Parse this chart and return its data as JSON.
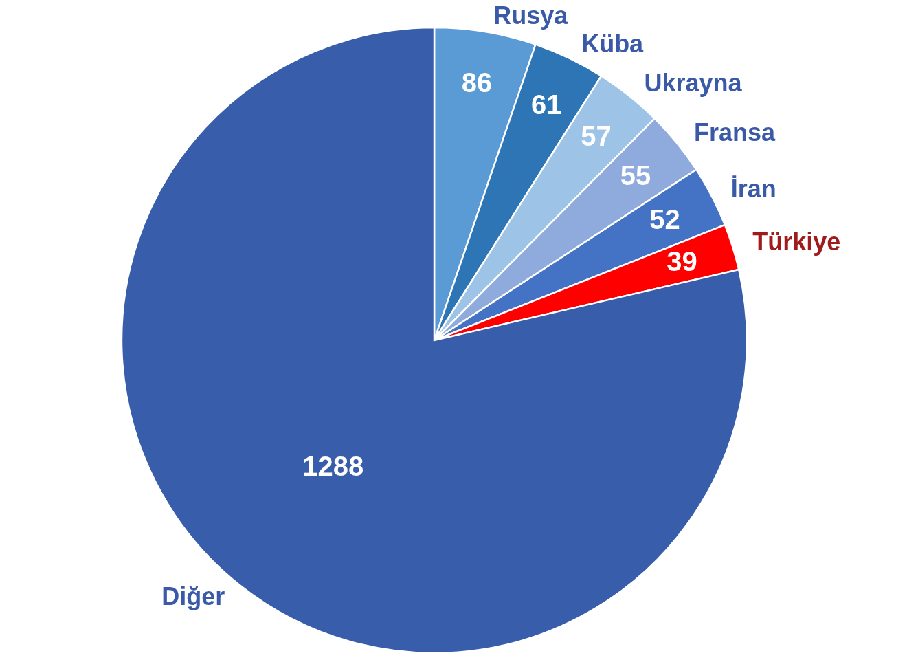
{
  "chart_data": {
    "type": "pie",
    "categories": [
      "Rusya",
      "Küba",
      "Ukrayna",
      "Fransa",
      "İran",
      "Türkiye",
      "Diğer"
    ],
    "values": [
      86,
      61,
      57,
      55,
      52,
      39,
      1288
    ],
    "colors": [
      "#5b9bd5",
      "#2e75b6",
      "#9dc3e6",
      "#8faadc",
      "#4472c4",
      "#ff0000",
      "#385eab"
    ],
    "data_labels": true,
    "legend": false
  }
}
